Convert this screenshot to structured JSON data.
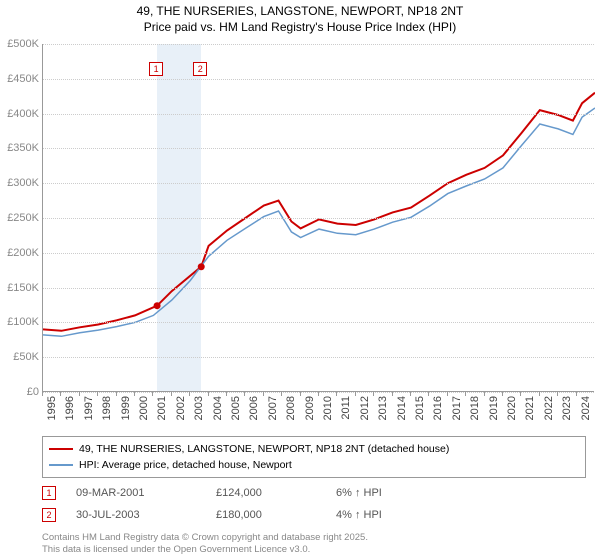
{
  "chart": {
    "type": "line",
    "title_line1": "49, THE NURSERIES, LANGSTONE, NEWPORT, NP18 2NT",
    "title_line2": "Price paid vs. HM Land Registry's House Price Index (HPI)",
    "title_fontsize": 12,
    "background_color": "#ffffff",
    "grid_color": "#cccccc",
    "axis_color": "#999999",
    "xlim": [
      1995,
      2025
    ],
    "ylim": [
      0,
      500000
    ],
    "ytick_step": 50000,
    "y_ticks": [
      "£0",
      "£50K",
      "£100K",
      "£150K",
      "£200K",
      "£250K",
      "£300K",
      "£350K",
      "£400K",
      "£450K",
      "£500K"
    ],
    "x_ticks": [
      "1995",
      "1996",
      "1997",
      "1998",
      "1999",
      "2000",
      "2001",
      "2002",
      "2003",
      "2004",
      "2005",
      "2006",
      "2007",
      "2008",
      "2009",
      "2010",
      "2011",
      "2012",
      "2013",
      "2014",
      "2015",
      "2016",
      "2017",
      "2018",
      "2019",
      "2020",
      "2021",
      "2022",
      "2023",
      "2024"
    ],
    "highlight_band": {
      "from_year": 2001.2,
      "to_year": 2003.6,
      "color": "#e8f0f8"
    },
    "series": [
      {
        "name": "property",
        "label": "49, THE NURSERIES, LANGSTONE, NEWPORT, NP18 2NT (detached house)",
        "color": "#cc0000",
        "line_width": 2,
        "points": [
          [
            1995,
            90000
          ],
          [
            1996,
            88000
          ],
          [
            1997,
            93000
          ],
          [
            1998,
            97000
          ],
          [
            1999,
            103000
          ],
          [
            2000,
            110000
          ],
          [
            2001.2,
            124000
          ],
          [
            2002,
            145000
          ],
          [
            2003.6,
            180000
          ],
          [
            2004,
            210000
          ],
          [
            2005,
            232000
          ],
          [
            2006,
            250000
          ],
          [
            2007,
            268000
          ],
          [
            2007.8,
            275000
          ],
          [
            2008.5,
            245000
          ],
          [
            2009,
            235000
          ],
          [
            2010,
            248000
          ],
          [
            2011,
            242000
          ],
          [
            2012,
            240000
          ],
          [
            2013,
            248000
          ],
          [
            2014,
            258000
          ],
          [
            2015,
            265000
          ],
          [
            2016,
            282000
          ],
          [
            2017,
            300000
          ],
          [
            2018,
            312000
          ],
          [
            2019,
            322000
          ],
          [
            2020,
            340000
          ],
          [
            2021,
            372000
          ],
          [
            2022,
            405000
          ],
          [
            2023,
            398000
          ],
          [
            2023.8,
            390000
          ],
          [
            2024.3,
            415000
          ],
          [
            2025,
            430000
          ]
        ]
      },
      {
        "name": "hpi",
        "label": "HPI: Average price, detached house, Newport",
        "color": "#6699cc",
        "line_width": 1.5,
        "points": [
          [
            1995,
            82000
          ],
          [
            1996,
            80000
          ],
          [
            1997,
            85000
          ],
          [
            1998,
            89000
          ],
          [
            1999,
            94000
          ],
          [
            2000,
            100000
          ],
          [
            2001,
            110000
          ],
          [
            2002,
            132000
          ],
          [
            2003,
            160000
          ],
          [
            2004,
            195000
          ],
          [
            2005,
            218000
          ],
          [
            2006,
            235000
          ],
          [
            2007,
            252000
          ],
          [
            2007.8,
            260000
          ],
          [
            2008.5,
            230000
          ],
          [
            2009,
            222000
          ],
          [
            2010,
            234000
          ],
          [
            2011,
            228000
          ],
          [
            2012,
            226000
          ],
          [
            2013,
            234000
          ],
          [
            2014,
            244000
          ],
          [
            2015,
            251000
          ],
          [
            2016,
            267000
          ],
          [
            2017,
            285000
          ],
          [
            2018,
            296000
          ],
          [
            2019,
            306000
          ],
          [
            2020,
            322000
          ],
          [
            2021,
            354000
          ],
          [
            2022,
            385000
          ],
          [
            2023,
            378000
          ],
          [
            2023.8,
            370000
          ],
          [
            2024.3,
            395000
          ],
          [
            2025,
            408000
          ]
        ]
      }
    ],
    "sale_markers": [
      {
        "num": "1",
        "year": 2001.2,
        "value": 124000,
        "date": "09-MAR-2001",
        "price": "£124,000",
        "change": "6% ↑ HPI"
      },
      {
        "num": "2",
        "year": 2003.6,
        "value": 180000,
        "date": "30-JUL-2003",
        "price": "£180,000",
        "change": "4% ↑ HPI"
      }
    ],
    "marker_color": "#cc0000",
    "footnote_line1": "Contains HM Land Registry data © Crown copyright and database right 2025.",
    "footnote_line2": "This data is licensed under the Open Government Licence v3.0."
  }
}
